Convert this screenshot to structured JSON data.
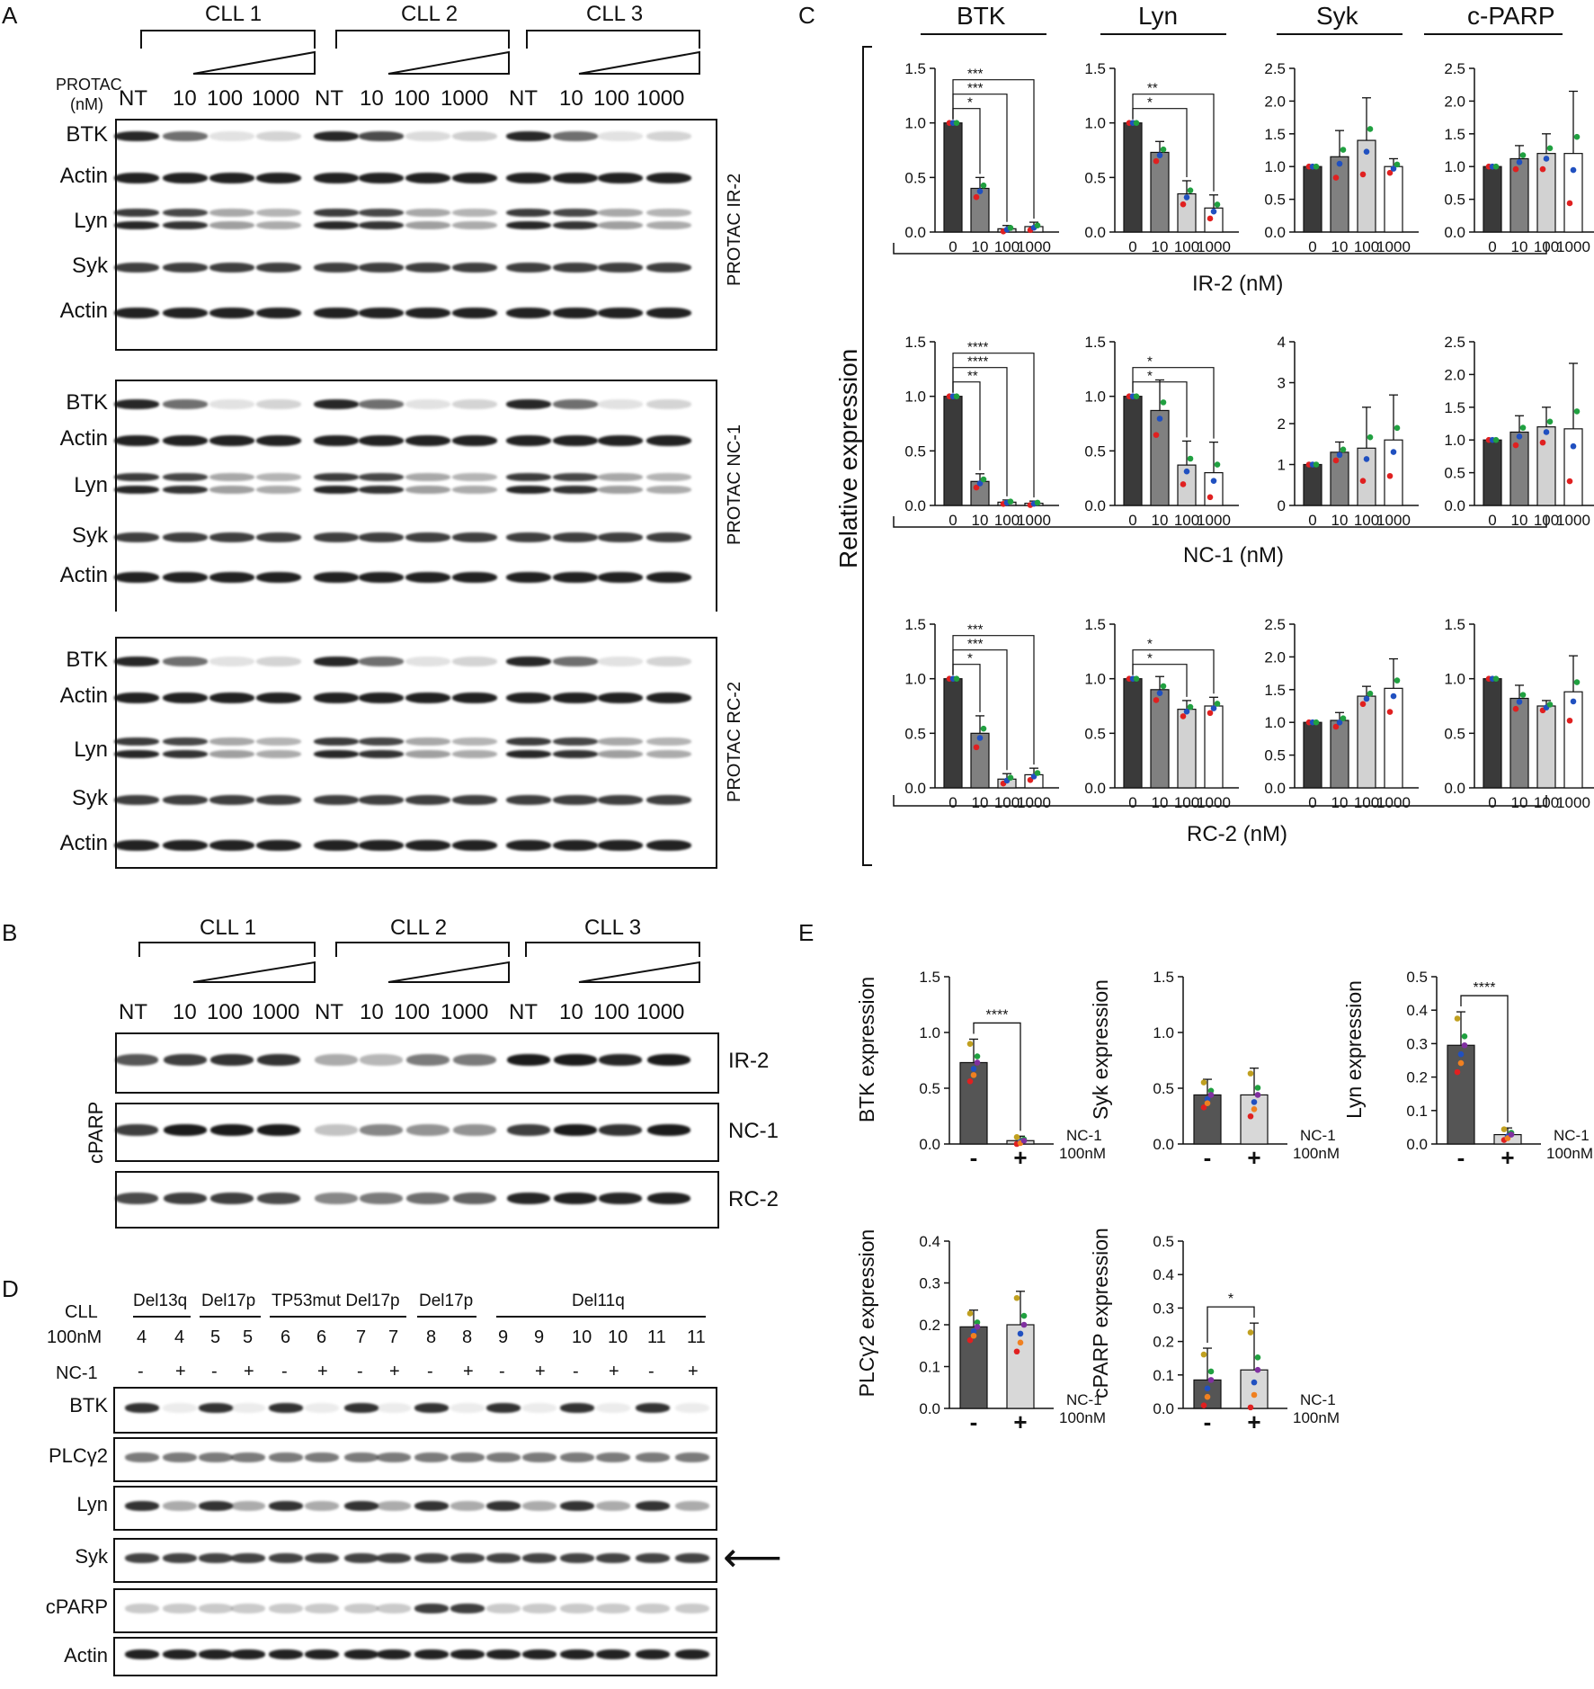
{
  "panels": {
    "A": "A",
    "B": "B",
    "C": "C",
    "D": "D",
    "E": "E"
  },
  "panel_a": {
    "groups": [
      "CLL 1",
      "CLL 2",
      "CLL 3"
    ],
    "conc_label_1": "PROTAC",
    "conc_label_2": "(nM)",
    "lanes": [
      "NT",
      "10",
      "100",
      "1000",
      "NT",
      "10",
      "100",
      "1000",
      "NT",
      "10",
      "100",
      "1000"
    ],
    "blocks": [
      {
        "side": "PROTAC IR-2",
        "rows": [
          "BTK",
          "Actin",
          "Lyn",
          "Syk",
          "Actin"
        ]
      },
      {
        "side": "PROTAC  NC-1",
        "rows": [
          "BTK",
          "Actin",
          "Lyn",
          "Syk",
          "Actin"
        ]
      },
      {
        "side": "PROTAC RC-2",
        "rows": [
          "BTK",
          "Actin",
          "Lyn",
          "Syk",
          "Actin"
        ]
      }
    ]
  },
  "panel_b": {
    "groups": [
      "CLL 1",
      "CLL 2",
      "CLL 3"
    ],
    "lanes": [
      "NT",
      "10",
      "100",
      "1000",
      "NT",
      "10",
      "100",
      "1000",
      "NT",
      "10",
      "100",
      "1000"
    ],
    "left_label": "cPARP",
    "rows": [
      "IR-2",
      "NC-1",
      "RC-2"
    ]
  },
  "panel_d": {
    "groups": [
      "Del13q",
      "Del17p",
      "TP53mut Del17p",
      "Del17p",
      "Del11q"
    ],
    "cll_label": "CLL",
    "conc_label": "100nM",
    "nc_label": "NC-1",
    "patients": [
      "4",
      "4",
      "5",
      "5",
      "6",
      "6",
      "7",
      "7",
      "8",
      "8",
      "9",
      "9",
      "10",
      "10",
      "11",
      "11"
    ],
    "treat": [
      "-",
      "+",
      "-",
      "+",
      "-",
      "+",
      "-",
      "+",
      "-",
      "+",
      "-",
      "+",
      "-",
      "+",
      "-",
      "+"
    ],
    "rows": [
      "BTK",
      "PLCγ2",
      "Lyn",
      "Syk",
      "cPARP",
      "Actin"
    ],
    "arrow": "⟵"
  },
  "panel_c": {
    "y_axis_title": "Relative expression",
    "col_titles": [
      "BTK",
      "Lyn",
      "Syk",
      "c-PARP"
    ],
    "row_titles": [
      "IR-2 (nM)",
      "NC-1 (nM)",
      "RC-2 (nM)"
    ]
  },
  "panel_e": {
    "nc_label": "NC-1",
    "conc_label": "100nM"
  },
  "chart_data": [
    {
      "id": "C-IR2-BTK",
      "type": "bar",
      "categories": [
        "0",
        "10",
        "100",
        "1000"
      ],
      "values": [
        1.0,
        0.4,
        0.03,
        0.05
      ],
      "errors": [
        0,
        0.1,
        0.03,
        0.04
      ],
      "ylim": [
        0,
        1.5
      ],
      "yticks": [
        "0.0",
        "0.5",
        "1.0",
        "1.5"
      ],
      "sig": [
        "*",
        "***",
        "***"
      ]
    },
    {
      "id": "C-IR2-Lyn",
      "type": "bar",
      "categories": [
        "0",
        "10",
        "100",
        "1000"
      ],
      "values": [
        1.0,
        0.73,
        0.35,
        0.22
      ],
      "errors": [
        0,
        0.1,
        0.12,
        0.12
      ],
      "ylim": [
        0,
        1.5
      ],
      "yticks": [
        "0.0",
        "0.5",
        "1.0",
        "1.5"
      ],
      "sig": [
        "*",
        "**"
      ]
    },
    {
      "id": "C-IR2-Syk",
      "type": "bar",
      "categories": [
        "0",
        "10",
        "100",
        "1000"
      ],
      "values": [
        1.0,
        1.15,
        1.4,
        1.0
      ],
      "errors": [
        0,
        0.4,
        0.65,
        0.12
      ],
      "ylim": [
        0,
        2.5
      ],
      "yticks": [
        "0.0",
        "0.5",
        "1.0",
        "1.5",
        "2.0",
        "2.5"
      ],
      "sig": []
    },
    {
      "id": "C-IR2-cPARP",
      "type": "bar",
      "categories": [
        "0",
        "10",
        "100",
        "1000"
      ],
      "values": [
        1.0,
        1.12,
        1.2,
        1.2
      ],
      "errors": [
        0,
        0.2,
        0.3,
        0.95
      ],
      "ylim": [
        0,
        2.5
      ],
      "yticks": [
        "0.0",
        "0.5",
        "1.0",
        "1.5",
        "2.0",
        "2.5"
      ],
      "sig": []
    },
    {
      "id": "C-NC1-BTK",
      "type": "bar",
      "categories": [
        "0",
        "10",
        "100",
        "1000"
      ],
      "values": [
        1.0,
        0.22,
        0.03,
        0.02
      ],
      "errors": [
        0,
        0.07,
        0.02,
        0.02
      ],
      "ylim": [
        0,
        1.5
      ],
      "yticks": [
        "0.0",
        "0.5",
        "1.0",
        "1.5"
      ],
      "sig": [
        "**",
        "****",
        "****"
      ]
    },
    {
      "id": "C-NC1-Lyn",
      "type": "bar",
      "categories": [
        "0",
        "10",
        "100",
        "1000"
      ],
      "values": [
        1.0,
        0.87,
        0.37,
        0.3
      ],
      "errors": [
        0,
        0.28,
        0.22,
        0.28
      ],
      "ylim": [
        0,
        1.5
      ],
      "yticks": [
        "0.0",
        "0.5",
        "1.0",
        "1.5"
      ],
      "sig": [
        "*",
        "*"
      ]
    },
    {
      "id": "C-NC1-Syk",
      "type": "bar",
      "categories": [
        "0",
        "10",
        "100",
        "1000"
      ],
      "values": [
        1.0,
        1.3,
        1.4,
        1.6
      ],
      "errors": [
        0,
        0.25,
        1.0,
        1.1
      ],
      "ylim": [
        0,
        4
      ],
      "yticks": [
        "0",
        "1",
        "2",
        "3",
        "4"
      ],
      "sig": []
    },
    {
      "id": "C-NC1-cPARP",
      "type": "bar",
      "categories": [
        "0",
        "10",
        "100",
        "1000"
      ],
      "values": [
        1.0,
        1.12,
        1.2,
        1.17
      ],
      "errors": [
        0,
        0.25,
        0.3,
        1.0
      ],
      "ylim": [
        0,
        2.5
      ],
      "yticks": [
        "0.0",
        "0.5",
        "1.0",
        "1.5",
        "2.0",
        "2.5"
      ],
      "sig": []
    },
    {
      "id": "C-RC2-BTK",
      "type": "bar",
      "categories": [
        "0",
        "10",
        "100",
        "1000"
      ],
      "values": [
        1.0,
        0.5,
        0.08,
        0.12
      ],
      "errors": [
        0,
        0.16,
        0.05,
        0.06
      ],
      "ylim": [
        0,
        1.5
      ],
      "yticks": [
        "0.0",
        "0.5",
        "1.0",
        "1.5"
      ],
      "sig": [
        "*",
        "***",
        "***"
      ]
    },
    {
      "id": "C-RC2-Lyn",
      "type": "bar",
      "categories": [
        "0",
        "10",
        "100",
        "1000"
      ],
      "values": [
        1.0,
        0.9,
        0.72,
        0.75
      ],
      "errors": [
        0,
        0.12,
        0.08,
        0.08
      ],
      "ylim": [
        0,
        1.5
      ],
      "yticks": [
        "0.0",
        "0.5",
        "1.0",
        "1.5"
      ],
      "sig": [
        "*",
        "*"
      ]
    },
    {
      "id": "C-RC2-Syk",
      "type": "bar",
      "categories": [
        "0",
        "10",
        "100",
        "1000"
      ],
      "values": [
        1.0,
        1.03,
        1.4,
        1.52
      ],
      "errors": [
        0,
        0.12,
        0.15,
        0.45
      ],
      "ylim": [
        0,
        2.5
      ],
      "yticks": [
        "0.0",
        "0.5",
        "1.0",
        "1.5",
        "2.0",
        "2.5"
      ],
      "sig": []
    },
    {
      "id": "C-RC2-cPARP",
      "type": "bar",
      "categories": [
        "0",
        "10",
        "100",
        "1000"
      ],
      "values": [
        1.0,
        0.82,
        0.75,
        0.88
      ],
      "errors": [
        0,
        0.12,
        0.05,
        0.33
      ],
      "ylim": [
        0,
        1.5
      ],
      "yticks": [
        "0.0",
        "0.5",
        "1.0",
        "1.5"
      ],
      "sig": []
    },
    {
      "id": "E-BTK",
      "type": "bar",
      "categories": [
        "-",
        "+"
      ],
      "values": [
        0.73,
        0.03
      ],
      "errors": [
        0.21,
        0.04
      ],
      "ylim": [
        0,
        1.5
      ],
      "yticks": [
        "0.0",
        "0.5",
        "1.0",
        "1.5"
      ],
      "ylabel": "BTK expression",
      "sig": [
        "****"
      ]
    },
    {
      "id": "E-Syk",
      "type": "bar",
      "categories": [
        "-",
        "+"
      ],
      "values": [
        0.44,
        0.44
      ],
      "errors": [
        0.14,
        0.24
      ],
      "ylim": [
        0,
        1.5
      ],
      "yticks": [
        "0.0",
        "0.5",
        "1.0",
        "1.5"
      ],
      "ylabel": "Syk expression",
      "sig": []
    },
    {
      "id": "E-Lyn",
      "type": "bar",
      "categories": [
        "-",
        "+"
      ],
      "values": [
        0.295,
        0.028
      ],
      "errors": [
        0.1,
        0.02
      ],
      "ylim": [
        0,
        0.5
      ],
      "yticks": [
        "0.0",
        "0.1",
        "0.2",
        "0.3",
        "0.4",
        "0.5"
      ],
      "ylabel": "Lyn expression",
      "sig": [
        "****"
      ]
    },
    {
      "id": "E-PLCg2",
      "type": "bar",
      "categories": [
        "-",
        "+"
      ],
      "values": [
        0.195,
        0.2
      ],
      "errors": [
        0.04,
        0.08
      ],
      "ylim": [
        0,
        0.4
      ],
      "yticks": [
        "0.0",
        "0.1",
        "0.2",
        "0.3",
        "0.4"
      ],
      "ylabel": "PLCγ2 expression",
      "sig": []
    },
    {
      "id": "E-cPARP",
      "type": "bar",
      "categories": [
        "-",
        "+"
      ],
      "values": [
        0.085,
        0.115
      ],
      "errors": [
        0.095,
        0.14
      ],
      "ylim": [
        0,
        0.5
      ],
      "yticks": [
        "0.0",
        "0.1",
        "0.2",
        "0.3",
        "0.4",
        "0.5"
      ],
      "ylabel": "cPARP expression",
      "sig": [
        "*"
      ]
    }
  ]
}
